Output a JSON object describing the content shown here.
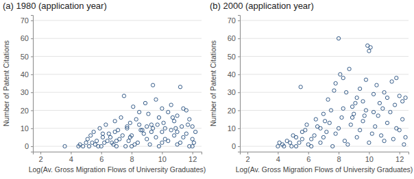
{
  "chart_data": [
    {
      "type": "scatter",
      "title": "(a) 1980 (application year)",
      "x_label": "Log(Av. Gross Migration Flows of University Graduates)",
      "y_label": "Number of Patent Citations",
      "color": "#1f4a7a",
      "marker": "circle",
      "grid": true,
      "xlim": [
        1.5,
        12.6
      ],
      "ylim": [
        -3,
        73
      ],
      "xticks": [
        2,
        4,
        6,
        8,
        10,
        12
      ],
      "yticks": [
        0,
        10,
        20,
        30,
        40,
        50,
        60,
        70
      ],
      "x": [
        3.6,
        4.5,
        4.6,
        4.8,
        5.0,
        5.1,
        5.3,
        5.5,
        5.7,
        5.9,
        6.1,
        6.3,
        6.5,
        6.7,
        6.9,
        7.1,
        7.3,
        7.5,
        7.7,
        7.9,
        8.1,
        8.3,
        8.5,
        8.7,
        8.9,
        9.1,
        9.3,
        9.4,
        9.6,
        9.8,
        10.0,
        10.2,
        10.4,
        10.6,
        10.8,
        11.0,
        11.2,
        11.4,
        11.6,
        11.8,
        12.0,
        5.2,
        5.6,
        6.0,
        6.4,
        6.8,
        7.2,
        7.6,
        8.0,
        8.4,
        8.8,
        9.2,
        9.6,
        10.0,
        10.4,
        10.8,
        11.2,
        11.6,
        12.0,
        5.4,
        5.8,
        6.2,
        6.6,
        7.0,
        7.4,
        7.8,
        8.2,
        8.6,
        9.0,
        9.4,
        9.8,
        10.2,
        10.6,
        11.0,
        11.4,
        11.8,
        12.2,
        6.1,
        6.9,
        7.7,
        8.5,
        9.3,
        10.1,
        10.9,
        11.7,
        12.1,
        7.0,
        8.0,
        9.0,
        10.0,
        11.0,
        12.0,
        7.9,
        9.7,
        11.3,
        10.7
      ],
      "y": [
        0,
        0,
        1,
        0,
        2,
        4,
        6,
        8,
        3,
        10,
        5,
        12,
        7,
        2,
        14,
        9,
        16,
        28,
        11,
        5,
        22,
        15,
        19,
        9,
        24,
        18,
        12,
        34,
        26,
        16,
        21,
        10,
        19,
        23,
        14,
        17,
        33,
        21,
        20,
        15,
        11,
        0,
        1,
        0,
        3,
        1,
        4,
        0,
        6,
        2,
        7,
        1,
        5,
        8,
        3,
        6,
        2,
        7,
        4,
        2,
        0,
        2,
        5,
        0,
        6,
        3,
        1,
        9,
        4,
        10,
        0,
        4,
        9,
        1,
        5,
        0,
        8,
        7,
        8,
        10,
        12,
        8,
        13,
        10,
        12,
        2,
        3,
        0,
        11,
        2,
        8,
        0,
        13,
        12,
        11,
        16
      ]
    },
    {
      "type": "scatter",
      "title": "(b) 2000 (application year)",
      "x_label": "Log(Av. Gross Migration Flows of University Graduates)",
      "y_label": "Number of Patent Citations",
      "color": "#1f4a7a",
      "marker": "circle",
      "grid": true,
      "xlim": [
        1.5,
        12.6
      ],
      "ylim": [
        -3,
        73
      ],
      "xticks": [
        2,
        4,
        6,
        8,
        10,
        12
      ],
      "yticks": [
        0,
        10,
        20,
        30,
        40,
        50,
        60,
        70
      ],
      "x": [
        4.0,
        4.1,
        4.3,
        4.6,
        4.9,
        5.2,
        5.5,
        5.6,
        5.9,
        6.2,
        6.5,
        6.8,
        7.0,
        7.3,
        7.5,
        7.7,
        7.8,
        8.0,
        8.1,
        8.3,
        8.5,
        8.7,
        8.9,
        9.2,
        9.4,
        9.6,
        9.8,
        9.9,
        10.0,
        10.1,
        10.3,
        10.5,
        10.7,
        11.0,
        11.2,
        11.5,
        11.8,
        12.0,
        12.2,
        12.4,
        4.4,
        4.8,
        5.2,
        5.6,
        6.0,
        6.4,
        6.8,
        7.2,
        7.6,
        8.0,
        8.4,
        8.8,
        9.2,
        9.6,
        10.0,
        10.4,
        10.8,
        11.2,
        11.6,
        12.0,
        12.3,
        5.0,
        5.8,
        6.6,
        7.4,
        8.2,
        9.0,
        9.8,
        10.6,
        11.4,
        12.2,
        5.4,
        6.2,
        7.0,
        7.8,
        8.6,
        9.4,
        10.2,
        11.0,
        11.8,
        12.4,
        7.1,
        8.3,
        9.1,
        10.9,
        11.7,
        8.9,
        9.7,
        10.3
      ],
      "y": [
        0,
        2,
        1,
        3,
        0,
        5,
        33,
        8,
        12,
        4,
        15,
        10,
        18,
        26,
        20,
        31,
        35,
        60,
        40,
        38,
        30,
        43,
        22,
        27,
        32,
        25,
        37,
        56,
        53,
        55,
        29,
        34,
        24,
        30,
        27,
        36,
        38,
        28,
        25,
        27,
        0,
        2,
        0,
        4,
        1,
        6,
        2,
        8,
        0,
        10,
        3,
        12,
        5,
        14,
        2,
        11,
        6,
        13,
        4,
        9,
        1,
        6,
        9,
        11,
        13,
        16,
        18,
        20,
        17,
        19,
        15,
        2,
        0,
        5,
        7,
        1,
        9,
        7,
        3,
        10,
        5,
        14,
        21,
        24,
        21,
        23,
        16,
        17,
        19
      ]
    }
  ]
}
